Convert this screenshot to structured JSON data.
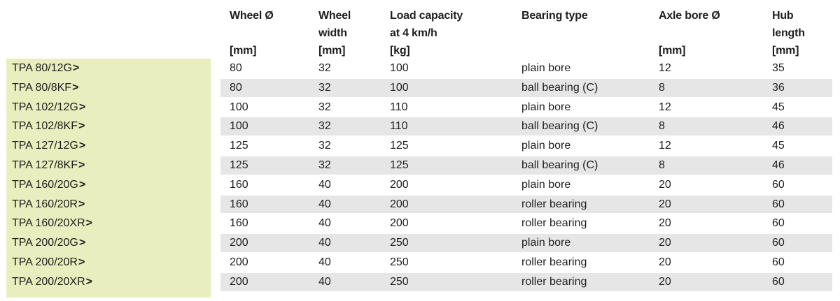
{
  "headers": [
    {
      "line1": "Wheel Ø",
      "line2": "",
      "unit": "[mm]"
    },
    {
      "line1": "Wheel",
      "line2": "width",
      "unit": "[mm]"
    },
    {
      "line1": "Load capacity",
      "line2": "at 4 km/h",
      "unit": "[kg]"
    },
    {
      "line1": "Bearing type",
      "line2": "",
      "unit": ""
    },
    {
      "line1": "Axle bore Ø",
      "line2": "",
      "unit": "[mm]"
    },
    {
      "line1": "Hub",
      "line2": "length",
      "unit": "[mm]"
    }
  ],
  "rows": [
    {
      "name": "TPA 80/12G",
      "chev": ">",
      "wheel": "80",
      "width": "32",
      "load": "100",
      "bearing": "plain bore",
      "bore": "12",
      "hub": "35"
    },
    {
      "name": "TPA 80/8KF",
      "chev": ">",
      "wheel": "80",
      "width": "32",
      "load": "100",
      "bearing": "ball bearing (C)",
      "bore": "8",
      "hub": "36"
    },
    {
      "name": "TPA 102/12G",
      "chev": ">",
      "wheel": "100",
      "width": "32",
      "load": "110",
      "bearing": "plain bore",
      "bore": "12",
      "hub": "45"
    },
    {
      "name": "TPA 102/8KF",
      "chev": ">",
      "wheel": "100",
      "width": "32",
      "load": "110",
      "bearing": "ball bearing (C)",
      "bore": "8",
      "hub": "46"
    },
    {
      "name": "TPA 127/12G",
      "chev": ">",
      "wheel": "125",
      "width": "32",
      "load": "125",
      "bearing": "plain bore",
      "bore": "12",
      "hub": "45"
    },
    {
      "name": "TPA 127/8KF",
      "chev": ">",
      "wheel": "125",
      "width": "32",
      "load": "125",
      "bearing": "ball bearing (C)",
      "bore": "8",
      "hub": "46"
    },
    {
      "name": "TPA 160/20G",
      "chev": ">",
      "wheel": "160",
      "width": "40",
      "load": "200",
      "bearing": "plain bore",
      "bore": "20",
      "hub": "60"
    },
    {
      "name": "TPA 160/20R",
      "chev": ">",
      "wheel": "160",
      "width": "40",
      "load": "200",
      "bearing": "roller bearing",
      "bore": "20",
      "hub": "60"
    },
    {
      "name": "TPA 160/20XR",
      "chev": ">",
      "wheel": "160",
      "width": "40",
      "load": "200",
      "bearing": "roller bearing",
      "bore": "20",
      "hub": "60"
    },
    {
      "name": "TPA 200/20G",
      "chev": ">",
      "wheel": "200",
      "width": "40",
      "load": "250",
      "bearing": "plain bore",
      "bore": "20",
      "hub": "60"
    },
    {
      "name": "TPA 200/20R",
      "chev": ">",
      "wheel": "200",
      "width": "40",
      "load": "250",
      "bearing": "roller bearing",
      "bore": "20",
      "hub": "60"
    },
    {
      "name": "TPA 200/20XR",
      "chev": ">",
      "wheel": "200",
      "width": "40",
      "load": "250",
      "bearing": "roller bearing",
      "bore": "20",
      "hub": "60"
    }
  ],
  "colors": {
    "sidebar": "#e8eebd",
    "stripe": "#e6e6e6",
    "text": "#1e1e1e"
  }
}
